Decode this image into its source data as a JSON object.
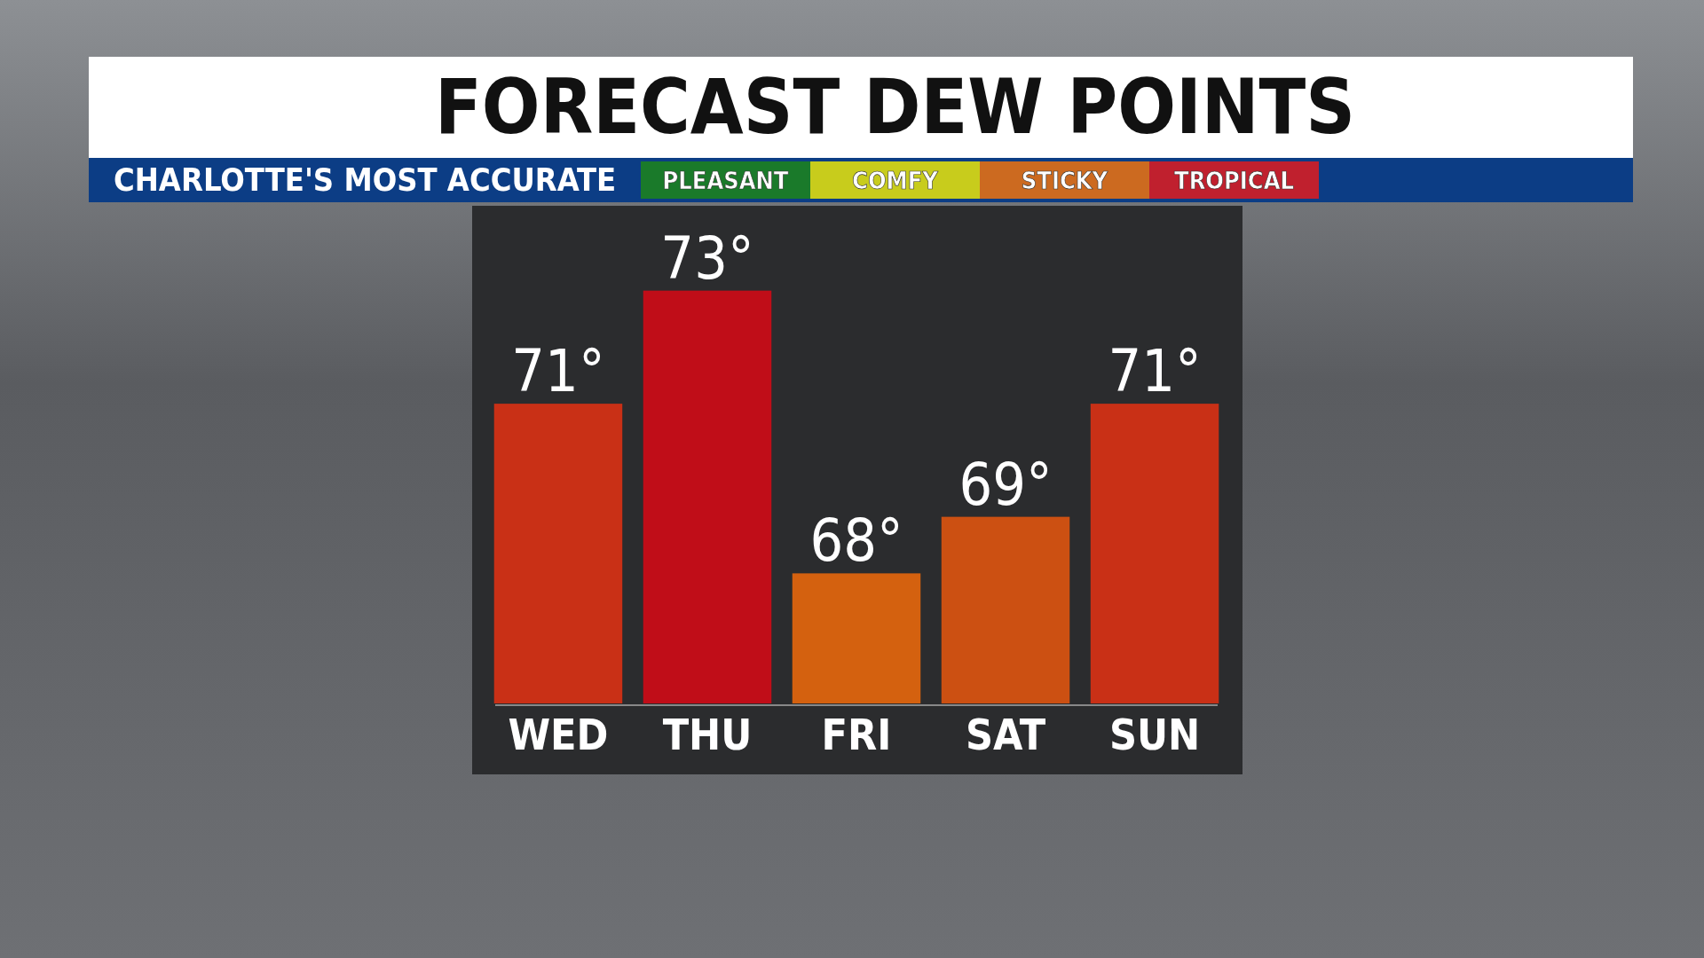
{
  "chart_data": {
    "type": "bar",
    "title": "FORECAST DEW POINTS",
    "subtitle": "CHARLOTTE'S MOST ACCURATE",
    "categories": [
      "WED",
      "THU",
      "FRI",
      "SAT",
      "SUN"
    ],
    "values": [
      71,
      73,
      68,
      69,
      71
    ],
    "colors": [
      "#c93016",
      "#c00d18",
      "#d4610f",
      "#cc5012",
      "#c93016"
    ],
    "value_labels": [
      "71°",
      "73°",
      "68°",
      "69°",
      "71°"
    ],
    "annotations": [
      "PLEASANT",
      "COMFY",
      "STICKY",
      "TROPICAL"
    ],
    "ylim": [
      65.7,
      74.5
    ],
    "tick_labels": "x"
  }
}
